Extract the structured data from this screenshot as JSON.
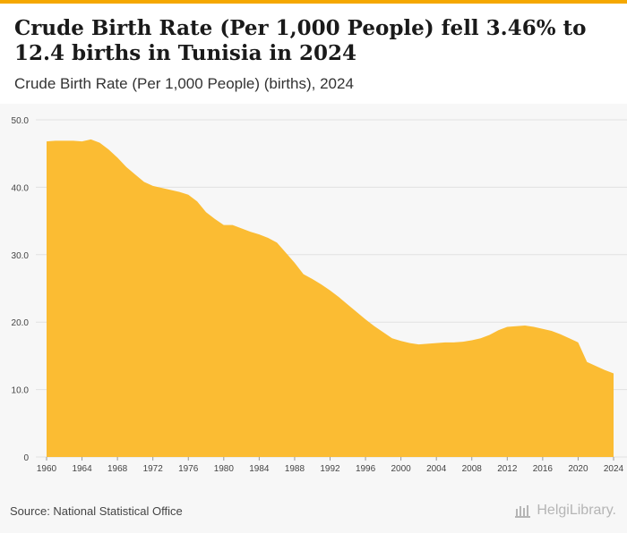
{
  "header": {
    "title": "Crude Birth Rate (Per 1,000 People) fell 3.46% to 12.4 births in Tunisia in 2024",
    "subtitle": "Crude Birth Rate (Per 1,000 People) (births), 2024"
  },
  "footer": {
    "source": "Source: National Statistical Office",
    "brand": "HelgiLibrary."
  },
  "colors": {
    "accent": "#f5a800",
    "area_fill": "#fbbc33",
    "grid": "#e2e2e2",
    "background": "#f7f7f7"
  },
  "chart_data": {
    "type": "area",
    "x": [
      1960,
      1961,
      1962,
      1963,
      1964,
      1965,
      1966,
      1967,
      1968,
      1969,
      1970,
      1971,
      1972,
      1973,
      1974,
      1975,
      1976,
      1977,
      1978,
      1979,
      1980,
      1981,
      1982,
      1983,
      1984,
      1985,
      1986,
      1987,
      1988,
      1989,
      1990,
      1991,
      1992,
      1993,
      1994,
      1995,
      1996,
      1997,
      1998,
      1999,
      2000,
      2001,
      2002,
      2003,
      2004,
      2005,
      2006,
      2007,
      2008,
      2009,
      2010,
      2011,
      2012,
      2013,
      2014,
      2015,
      2016,
      2017,
      2018,
      2019,
      2020,
      2021,
      2022,
      2023,
      2024
    ],
    "series": [
      {
        "values": [
          46.8,
          46.9,
          46.9,
          46.9,
          46.8,
          47.1,
          46.6,
          45.6,
          44.4,
          43.0,
          41.9,
          40.8,
          40.2,
          39.9,
          39.6,
          39.3,
          38.9,
          37.9,
          36.3,
          35.3,
          34.4,
          34.4,
          33.9,
          33.4,
          33.0,
          32.5,
          31.8,
          30.3,
          28.8,
          27.1,
          26.4,
          25.6,
          24.7,
          23.7,
          22.6,
          21.5,
          20.4,
          19.4,
          18.5,
          17.6,
          17.2,
          16.9,
          16.7,
          16.8,
          16.9,
          17.0,
          17.0,
          17.1,
          17.3,
          17.6,
          18.1,
          18.8,
          19.3,
          19.4,
          19.5,
          19.3,
          19.0,
          18.7,
          18.2,
          17.6,
          17.0,
          14.1,
          13.5,
          12.9,
          12.4
        ]
      }
    ],
    "y_ticks": [
      "0",
      "10.0",
      "20.0",
      "30.0",
      "40.0",
      "50.0"
    ],
    "x_ticks": [
      "1960",
      "1964",
      "1968",
      "1972",
      "1976",
      "1980",
      "1984",
      "1988",
      "1992",
      "1996",
      "2000",
      "2004",
      "2008",
      "2012",
      "2016",
      "2020",
      "2024"
    ],
    "ylim": [
      0,
      50
    ],
    "xlim": [
      1960,
      2024
    ],
    "grid": "horizontal"
  }
}
